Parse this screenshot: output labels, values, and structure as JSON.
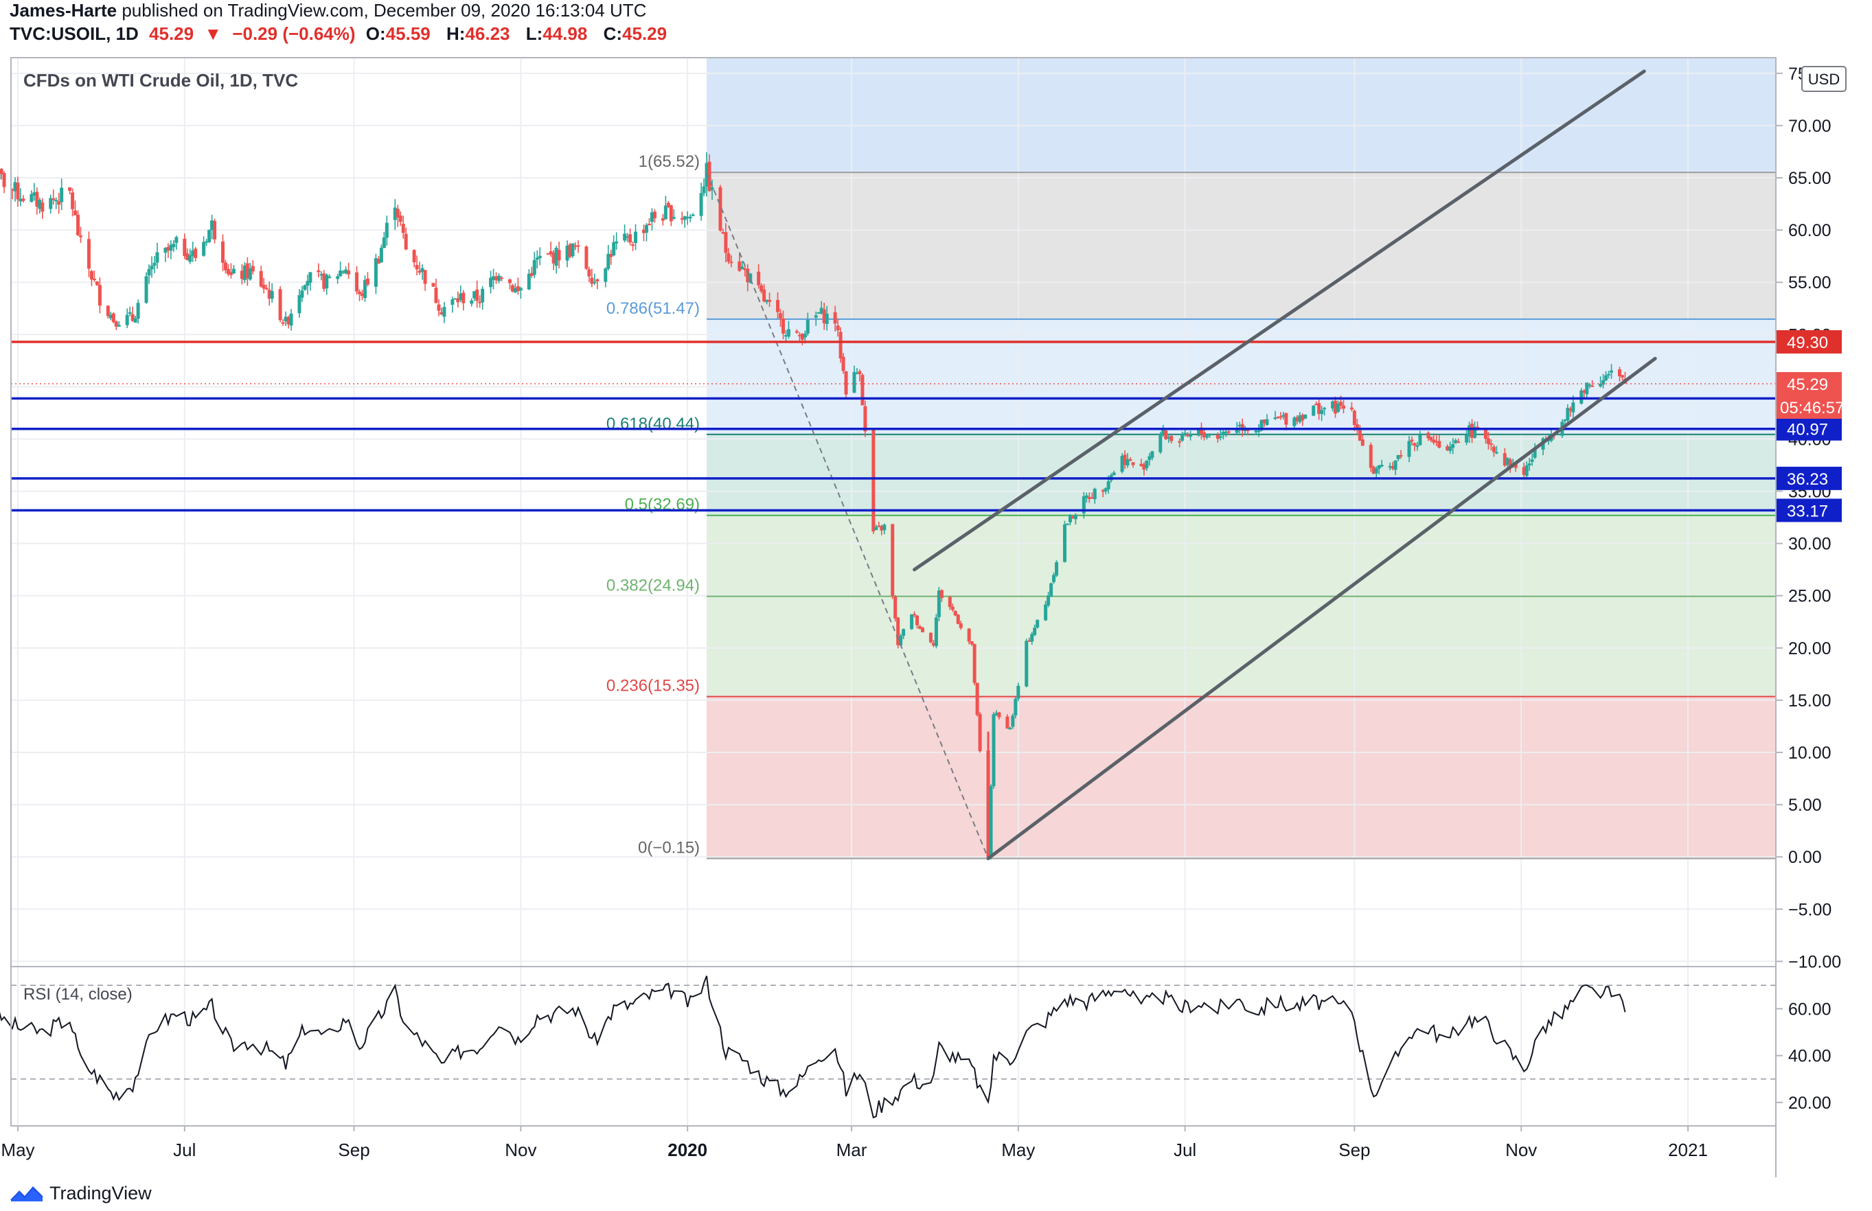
{
  "header": {
    "author": "James-Harte",
    "published_text": "published on TradingView.com, December 09, 2020 16:13:04 UTC",
    "symbol": "TVC:USOIL, 1D",
    "last": "45.29",
    "change_arrow": "▼",
    "change": "−0.29 (−0.64%)",
    "o_label": "O:",
    "o": "45.59",
    "h_label": "H:",
    "h": "46.23",
    "l_label": "L:",
    "l": "44.98",
    "c_label": "C:",
    "c": "45.29"
  },
  "legend": {
    "title": "CFDs on WTI Crude Oil, 1D, TVC"
  },
  "currency_button": "USD",
  "footer": {
    "brand": "TradingView"
  },
  "colors": {
    "up": "#26a69a",
    "down": "#ef5350",
    "red_line": "#e0302c",
    "blue_line": "#1020c8",
    "channel": "#5b6169",
    "fib_top_fill": "#d6e6f8",
    "fib_gray": "#e4e4e4",
    "fib_light_blue": "#e2eefa",
    "fib_teal": "#d6ebe6",
    "fib_green": "#e0efde",
    "fib_red": "#f6d6d6"
  },
  "chart_data": [
    {
      "type": "candlestick",
      "title": "CFDs on WTI Crude Oil, 1D, TVC",
      "x_ticks": [
        "May",
        "Jul",
        "Sep",
        "Nov",
        "2020",
        "Mar",
        "May",
        "Jul",
        "Sep",
        "Nov",
        "2021"
      ],
      "y_ticks": [
        "−10.00",
        "−5.00",
        "0.00",
        "5.00",
        "10.00",
        "15.00",
        "20.00",
        "25.00",
        "30.00",
        "35.00",
        "40.00",
        "45.00",
        "50.00",
        "55.00",
        "60.00",
        "65.00",
        "70.00",
        "75.00"
      ],
      "ylim": [
        -10.5,
        76.5
      ],
      "series_points": [
        [
          "2019-04-22",
          65.5
        ],
        [
          "2019-05-01",
          63.5
        ],
        [
          "2019-05-10",
          62.5
        ],
        [
          "2019-05-20",
          63.5
        ],
        [
          "2019-05-24",
          58.5
        ],
        [
          "2019-05-31",
          53.5
        ],
        [
          "2019-06-05",
          51.5
        ],
        [
          "2019-06-12",
          51.5
        ],
        [
          "2019-06-20",
          57.0
        ],
        [
          "2019-06-28",
          58.5
        ],
        [
          "2019-07-05",
          57.5
        ],
        [
          "2019-07-11",
          60.5
        ],
        [
          "2019-07-18",
          55.5
        ],
        [
          "2019-07-25",
          56.0
        ],
        [
          "2019-08-01",
          54.0
        ],
        [
          "2019-08-07",
          51.0
        ],
        [
          "2019-08-14",
          55.5
        ],
        [
          "2019-08-22",
          55.0
        ],
        [
          "2019-08-29",
          56.5
        ],
        [
          "2019-09-03",
          53.5
        ],
        [
          "2019-09-10",
          57.5
        ],
        [
          "2019-09-16",
          62.9
        ],
        [
          "2019-09-20",
          58.0
        ],
        [
          "2019-09-26",
          56.0
        ],
        [
          "2019-10-03",
          52.5
        ],
        [
          "2019-10-10",
          53.5
        ],
        [
          "2019-10-17",
          53.5
        ],
        [
          "2019-10-24",
          56.2
        ],
        [
          "2019-10-31",
          54.0
        ],
        [
          "2019-11-07",
          57.1
        ],
        [
          "2019-11-14",
          57.6
        ],
        [
          "2019-11-21",
          58.3
        ],
        [
          "2019-11-28",
          55.2
        ],
        [
          "2019-12-05",
          58.4
        ],
        [
          "2019-12-12",
          59.2
        ],
        [
          "2019-12-19",
          61.2
        ],
        [
          "2019-12-26",
          61.7
        ],
        [
          "2020-01-02",
          61.2
        ],
        [
          "2020-01-08",
          65.5
        ],
        [
          "2020-01-15",
          58.1
        ],
        [
          "2020-01-22",
          56.0
        ],
        [
          "2020-01-29",
          53.3
        ],
        [
          "2020-02-05",
          50.8
        ],
        [
          "2020-02-10",
          49.6
        ],
        [
          "2020-02-18",
          52.0
        ],
        [
          "2020-02-24",
          51.4
        ],
        [
          "2020-02-28",
          44.8
        ],
        [
          "2020-03-04",
          46.8
        ],
        [
          "2020-03-09",
          31.1
        ],
        [
          "2020-03-13",
          31.6
        ],
        [
          "2020-03-18",
          20.4
        ],
        [
          "2020-03-23",
          23.4
        ],
        [
          "2020-03-27",
          21.5
        ],
        [
          "2020-03-31",
          20.5
        ],
        [
          "2020-04-02",
          25.3
        ],
        [
          "2020-04-07",
          23.6
        ],
        [
          "2020-04-14",
          20.1
        ],
        [
          "2020-04-20",
          -0.15
        ],
        [
          "2020-04-22",
          13.8
        ],
        [
          "2020-04-28",
          12.3
        ],
        [
          "2020-05-04",
          20.4
        ],
        [
          "2020-05-11",
          24.1
        ],
        [
          "2020-05-18",
          31.7
        ],
        [
          "2020-05-26",
          34.4
        ],
        [
          "2020-06-01",
          35.4
        ],
        [
          "2020-06-08",
          38.2
        ],
        [
          "2020-06-15",
          37.1
        ],
        [
          "2020-06-22",
          40.5
        ],
        [
          "2020-06-29",
          39.8
        ],
        [
          "2020-07-06",
          40.6
        ],
        [
          "2020-07-13",
          40.3
        ],
        [
          "2020-07-20",
          41.3
        ],
        [
          "2020-07-27",
          41.0
        ],
        [
          "2020-08-03",
          41.9
        ],
        [
          "2020-08-10",
          42.0
        ],
        [
          "2020-08-17",
          42.9
        ],
        [
          "2020-08-24",
          43.0
        ],
        [
          "2020-08-31",
          42.8
        ],
        [
          "2020-09-04",
          39.4
        ],
        [
          "2020-09-08",
          36.8
        ],
        [
          "2020-09-14",
          37.3
        ],
        [
          "2020-09-21",
          39.7
        ],
        [
          "2020-09-28",
          40.2
        ],
        [
          "2020-10-05",
          38.5
        ],
        [
          "2020-10-12",
          40.9
        ],
        [
          "2020-10-19",
          40.2
        ],
        [
          "2020-10-26",
          37.9
        ],
        [
          "2020-11-02",
          36.8
        ],
        [
          "2020-11-09",
          40.1
        ],
        [
          "2020-11-16",
          41.5
        ],
        [
          "2020-11-24",
          45.0
        ],
        [
          "2020-11-30",
          45.8
        ],
        [
          "2020-12-04",
          46.2
        ],
        [
          "2020-12-09",
          45.29
        ]
      ],
      "fib_levels": [
        {
          "label": "1(65.52)",
          "value": 65.52
        },
        {
          "label": "0.786(51.47)",
          "value": 51.47
        },
        {
          "label": "0.618(40.44)",
          "value": 40.44
        },
        {
          "label": "0.5(32.69)",
          "value": 32.69
        },
        {
          "label": "0.382(24.94)",
          "value": 24.94
        },
        {
          "label": "0.236(15.35)",
          "value": 15.35
        },
        {
          "label": "0(−0.15)",
          "value": -0.15
        }
      ],
      "horizontal_lines": [
        {
          "label": "49.30",
          "value": 49.3,
          "color": "red"
        },
        {
          "label": "43.88",
          "value": 43.88,
          "color": "blue"
        },
        {
          "label": "40.97",
          "value": 40.97,
          "color": "blue"
        },
        {
          "label": "36.23",
          "value": 36.23,
          "color": "blue"
        },
        {
          "label": "33.17",
          "value": 33.17,
          "color": "blue"
        }
      ],
      "last_price": {
        "label": "45.29",
        "value": 45.29,
        "countdown": "05:46:57"
      },
      "channel_lines": [
        {
          "from": [
            "2020-04-20",
            -0.15
          ],
          "to": [
            "2020-12-20",
            47.7
          ]
        },
        {
          "from": [
            "2020-03-24",
            27.5
          ],
          "to": [
            "2020-12-16",
            75.2
          ]
        }
      ],
      "trend_dashed": {
        "from": [
          "2020-01-08",
          65.52
        ],
        "to": [
          "2020-04-20",
          -0.15
        ]
      }
    },
    {
      "type": "line",
      "title": "RSI (14, close)",
      "y_ticks": [
        "20.00",
        "40.00",
        "60.00"
      ],
      "ylim": [
        10,
        78
      ],
      "bands": [
        30,
        70
      ],
      "series_points": [
        [
          "2019-04-22",
          58
        ],
        [
          "2019-05-01",
          52
        ],
        [
          "2019-05-10",
          50
        ],
        [
          "2019-05-20",
          56
        ],
        [
          "2019-05-24",
          38
        ],
        [
          "2019-05-31",
          30
        ],
        [
          "2019-06-05",
          23
        ],
        [
          "2019-06-12",
          28
        ],
        [
          "2019-06-20",
          52
        ],
        [
          "2019-06-28",
          58
        ],
        [
          "2019-07-05",
          55
        ],
        [
          "2019-07-11",
          61
        ],
        [
          "2019-07-18",
          44
        ],
        [
          "2019-07-25",
          46
        ],
        [
          "2019-08-01",
          42
        ],
        [
          "2019-08-07",
          36
        ],
        [
          "2019-08-14",
          52
        ],
        [
          "2019-08-22",
          48
        ],
        [
          "2019-08-29",
          56
        ],
        [
          "2019-09-03",
          44
        ],
        [
          "2019-09-10",
          56
        ],
        [
          "2019-09-16",
          67
        ],
        [
          "2019-09-20",
          52
        ],
        [
          "2019-09-26",
          46
        ],
        [
          "2019-10-03",
          36
        ],
        [
          "2019-10-10",
          42
        ],
        [
          "2019-10-17",
          44
        ],
        [
          "2019-10-24",
          55
        ],
        [
          "2019-10-31",
          47
        ],
        [
          "2019-11-07",
          57
        ],
        [
          "2019-11-14",
          58
        ],
        [
          "2019-11-21",
          60
        ],
        [
          "2019-11-28",
          46
        ],
        [
          "2019-12-05",
          60
        ],
        [
          "2019-12-12",
          62
        ],
        [
          "2019-12-19",
          66
        ],
        [
          "2019-12-26",
          68
        ],
        [
          "2020-01-02",
          62
        ],
        [
          "2020-01-08",
          72
        ],
        [
          "2020-01-15",
          42
        ],
        [
          "2020-01-22",
          38
        ],
        [
          "2020-01-29",
          30
        ],
        [
          "2020-02-05",
          25
        ],
        [
          "2020-02-10",
          28
        ],
        [
          "2020-02-18",
          40
        ],
        [
          "2020-02-24",
          44
        ],
        [
          "2020-02-28",
          25
        ],
        [
          "2020-03-04",
          33
        ],
        [
          "2020-03-09",
          16
        ],
        [
          "2020-03-13",
          20
        ],
        [
          "2020-03-18",
          24
        ],
        [
          "2020-03-23",
          30
        ],
        [
          "2020-03-27",
          28
        ],
        [
          "2020-03-31",
          30
        ],
        [
          "2020-04-02",
          44
        ],
        [
          "2020-04-07",
          40
        ],
        [
          "2020-04-14",
          35
        ],
        [
          "2020-04-20",
          17
        ],
        [
          "2020-04-22",
          40
        ],
        [
          "2020-04-28",
          38
        ],
        [
          "2020-05-04",
          50
        ],
        [
          "2020-05-11",
          55
        ],
        [
          "2020-05-18",
          64
        ],
        [
          "2020-05-26",
          63
        ],
        [
          "2020-06-01",
          66
        ],
        [
          "2020-06-08",
          70
        ],
        [
          "2020-06-15",
          61
        ],
        [
          "2020-06-22",
          66
        ],
        [
          "2020-06-29",
          60
        ],
        [
          "2020-07-06",
          63
        ],
        [
          "2020-07-13",
          60
        ],
        [
          "2020-07-20",
          64
        ],
        [
          "2020-07-27",
          59
        ],
        [
          "2020-08-03",
          63
        ],
        [
          "2020-08-10",
          61
        ],
        [
          "2020-08-17",
          63
        ],
        [
          "2020-08-24",
          62
        ],
        [
          "2020-08-31",
          60
        ],
        [
          "2020-09-04",
          40
        ],
        [
          "2020-09-08",
          24
        ],
        [
          "2020-09-14",
          34
        ],
        [
          "2020-09-21",
          50
        ],
        [
          "2020-09-28",
          52
        ],
        [
          "2020-10-05",
          46
        ],
        [
          "2020-10-12",
          56
        ],
        [
          "2020-10-19",
          54
        ],
        [
          "2020-10-26",
          44
        ],
        [
          "2020-11-02",
          34
        ],
        [
          "2020-11-09",
          52
        ],
        [
          "2020-11-16",
          58
        ],
        [
          "2020-11-24",
          68
        ],
        [
          "2020-11-30",
          67
        ],
        [
          "2020-12-04",
          66
        ],
        [
          "2020-12-09",
          62
        ]
      ]
    }
  ]
}
